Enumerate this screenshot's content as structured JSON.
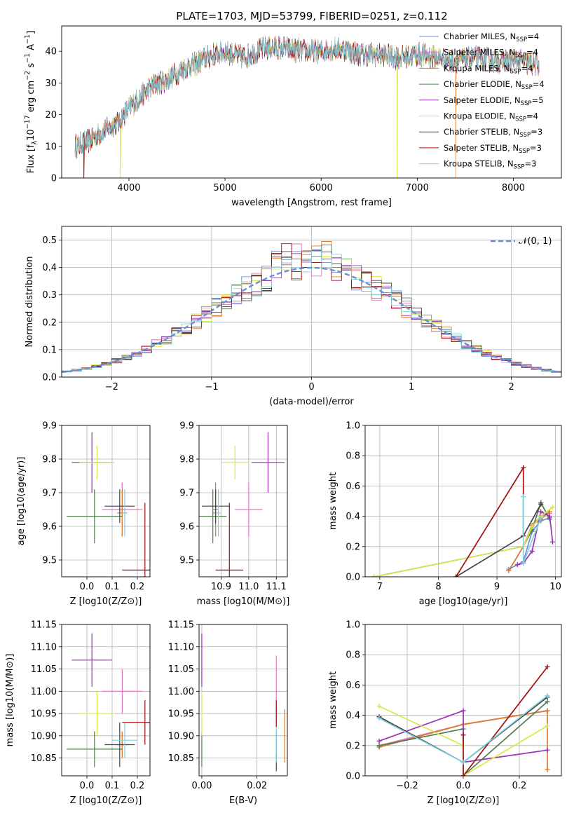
{
  "figure": {
    "title": "PLATE=1703, MJD=53799, FIBERID=0251, z=0.112",
    "models": [
      {
        "name": "Chabrier MILES",
        "nssp": 4,
        "color": "#6b8fd6"
      },
      {
        "name": "Salpeter MILES",
        "nssp": 4,
        "color": "#e377c2"
      },
      {
        "name": "Kroupa MILES",
        "nssp": 4,
        "color": "#e07b2a"
      },
      {
        "name": "Chabrier ELODIE",
        "nssp": 4,
        "color": "#4f7f4f"
      },
      {
        "name": "Salpeter ELODIE",
        "nssp": 5,
        "color": "#9b30b3"
      },
      {
        "name": "Kroupa ELODIE",
        "nssp": 4,
        "color": "#d6e84a"
      },
      {
        "name": "Chabrier STELIB",
        "nssp": 3,
        "color": "#444444"
      },
      {
        "name": "Salpeter STELIB",
        "nssp": 3,
        "color": "#a01010"
      },
      {
        "name": "Kroupa STELIB",
        "nssp": 3,
        "color": "#7fd3e0"
      }
    ],
    "legend_nssp_prefix": "N",
    "legend_nssp_sub": "SSP",
    "legend_location": "top-right"
  },
  "chart_data": [
    {
      "type": "line",
      "panel": "spectrum",
      "xlabel": "wavelength [Angstrom, rest frame]",
      "ylabel": "Flux [f",
      "ylabel_parts": {
        "main": "Flux [f",
        "sub1": "λ",
        "mid": "10",
        "sup1": "−17",
        "rest": " erg cm",
        "sup2": "−2",
        "rest2": " s",
        "sup3": "−1",
        "rest3": " A",
        "sup4": "−1",
        "end": "]"
      },
      "xlim": [
        3300,
        8500
      ],
      "ylim": [
        0,
        48
      ],
      "xticks": [
        "4000",
        "5000",
        "6000",
        "7000",
        "8000"
      ],
      "yticks": [
        "0",
        "10",
        "20",
        "30",
        "40"
      ],
      "grid": false,
      "continuum": {
        "x": [
          3450,
          3600,
          3750,
          3900,
          4000,
          4100,
          4200,
          4300,
          4400,
          4500,
          4600,
          4700,
          4800,
          5000,
          5200,
          5400,
          5600,
          5800,
          6000,
          6200,
          6400,
          6600,
          6800,
          7000,
          7200,
          7400,
          7600,
          7800,
          8000,
          8200
        ],
        "y": [
          10,
          12,
          15,
          18,
          22,
          25,
          28,
          30,
          31,
          33,
          35,
          36,
          38,
          40,
          38,
          41,
          41,
          40,
          40,
          41,
          39,
          39,
          38,
          39,
          38,
          37,
          38,
          37,
          37,
          36
        ]
      },
      "dropouts": [
        {
          "model": "Salpeter STELIB",
          "x": 3530
        },
        {
          "model": "Kroupa ELODIE",
          "x": 3910
        },
        {
          "model": "Kroupa ELODIE",
          "x": 6790
        },
        {
          "model": "Kroupa MILES",
          "x": 7400
        }
      ]
    },
    {
      "type": "line",
      "panel": "residual-histogram",
      "xlabel": "(data-model)/error",
      "ylabel": "Normed distribution",
      "xlim": [
        -2.5,
        2.5
      ],
      "ylim": [
        0,
        0.55
      ],
      "xticks": [
        "−2",
        "−1",
        "0",
        "1",
        "2"
      ],
      "yticks": [
        "0.0",
        "0.1",
        "0.2",
        "0.3",
        "0.4",
        "0.5"
      ],
      "grid": true,
      "gaussian_label": "𝒩(0, 1)",
      "gaussian": {
        "mean": 0,
        "sigma": 1,
        "color": "#6b8fd6"
      },
      "histogram_bin_width": 0.1
    },
    {
      "type": "scatter",
      "panel": "age-vs-metallicity",
      "xlabel": "Z [log10(Z/Z⊙)]",
      "ylabel": "age [log10(age/yr)]",
      "xlim": [
        -0.1,
        0.25
      ],
      "ylim": [
        9.45,
        9.9
      ],
      "xticks": [
        "0.0",
        "0.1",
        "0.2"
      ],
      "yticks": [
        "9.5",
        "9.6",
        "9.7",
        "9.8",
        "9.9"
      ],
      "grid": true,
      "points": [
        {
          "model": "Chabrier MILES",
          "x": 0.14,
          "y": 9.65,
          "xerr": 0.02,
          "yerr": 0.08
        },
        {
          "model": "Salpeter MILES",
          "x": 0.14,
          "y": 9.65,
          "xerr": 0.08,
          "yerr": 0.08
        },
        {
          "model": "Kroupa MILES",
          "x": 0.14,
          "y": 9.64,
          "xerr": 0.02,
          "yerr": 0.07
        },
        {
          "model": "Chabrier ELODIE",
          "x": 0.03,
          "y": 9.63,
          "xerr": 0.11,
          "yerr": 0.08
        },
        {
          "model": "Salpeter ELODIE",
          "x": 0.02,
          "y": 9.79,
          "xerr": 0.08,
          "yerr": 0.09
        },
        {
          "model": "Kroupa ELODIE",
          "x": 0.04,
          "y": 9.79,
          "xerr": 0.07,
          "yerr": 0.05
        },
        {
          "model": "Chabrier STELIB",
          "x": 0.13,
          "y": 9.66,
          "xerr": 0.06,
          "yerr": 0.05
        },
        {
          "model": "Salpeter STELIB",
          "x": 0.23,
          "y": 9.47,
          "xerr": 0.09,
          "yerr": 0.2
        },
        {
          "model": "Kroupa STELIB",
          "x": 0.15,
          "y": 9.64,
          "xerr": 0.01,
          "yerr": 0.07
        }
      ]
    },
    {
      "type": "scatter",
      "panel": "age-vs-mass",
      "xlabel": "mass [log10(M/M⊙)]",
      "ylabel": "",
      "xlim": [
        10.82,
        11.14
      ],
      "ylim": [
        9.45,
        9.9
      ],
      "xticks": [
        "10.9",
        "11.0",
        "11.1"
      ],
      "yticks": [
        "9.5",
        "9.6",
        "9.7",
        "9.8",
        "9.9"
      ],
      "grid": true,
      "points": [
        {
          "model": "Chabrier MILES",
          "x": 10.88,
          "y": 9.65,
          "xerr": 0.01,
          "yerr": 0.08
        },
        {
          "model": "Salpeter MILES",
          "x": 11.0,
          "y": 9.65,
          "xerr": 0.05,
          "yerr": 0.08
        },
        {
          "model": "Kroupa MILES",
          "x": 10.88,
          "y": 9.64,
          "xerr": 0.01,
          "yerr": 0.07
        },
        {
          "model": "Chabrier ELODIE",
          "x": 10.87,
          "y": 9.63,
          "xerr": 0.05,
          "yerr": 0.08
        },
        {
          "model": "Salpeter ELODIE",
          "x": 11.07,
          "y": 9.79,
          "xerr": 0.06,
          "yerr": 0.09
        },
        {
          "model": "Kroupa ELODIE",
          "x": 10.95,
          "y": 9.79,
          "xerr": 0.05,
          "yerr": 0.05
        },
        {
          "model": "Chabrier STELIB",
          "x": 10.88,
          "y": 9.66,
          "xerr": 0.05,
          "yerr": 0.05
        },
        {
          "model": "Salpeter STELIB",
          "x": 10.93,
          "y": 9.47,
          "xerr": 0.05,
          "yerr": 0.2
        },
        {
          "model": "Kroupa STELIB",
          "x": 10.89,
          "y": 9.64,
          "xerr": 0.01,
          "yerr": 0.07
        }
      ]
    },
    {
      "type": "line",
      "panel": "mass-weight-vs-age",
      "xlabel": "age [log10(age/yr)]",
      "ylabel": "mass weight",
      "xlim": [
        6.75,
        10.1
      ],
      "ylim": [
        0,
        1
      ],
      "xticks": [
        "7",
        "8",
        "9",
        "10"
      ],
      "yticks": [
        "0.0",
        "0.2",
        "0.4",
        "0.6",
        "0.8",
        "1.0"
      ],
      "grid": true,
      "series": [
        {
          "model": "Chabrier MILES",
          "x": [
            9.2,
            9.45,
            9.6,
            9.75,
            9.9
          ],
          "y": [
            0.05,
            0.1,
            0.3,
            0.37,
            0.39
          ]
        },
        {
          "model": "Salpeter MILES",
          "x": [
            9.2,
            9.45,
            9.6,
            9.75,
            9.9
          ],
          "y": [
            0.04,
            0.2,
            0.34,
            0.4,
            0.42
          ]
        },
        {
          "model": "Kroupa MILES",
          "x": [
            9.2,
            9.45,
            9.6,
            9.75,
            9.9
          ],
          "y": [
            0.04,
            0.2,
            0.34,
            0.38,
            0.43
          ]
        },
        {
          "model": "Chabrier ELODIE",
          "x": [
            6.9,
            9.45,
            9.6,
            9.75,
            9.9
          ],
          "y": [
            0.0,
            0.2,
            0.31,
            0.49,
            0.38
          ]
        },
        {
          "model": "Salpeter ELODIE",
          "x": [
            9.35,
            9.45,
            9.6,
            9.75,
            9.9,
            9.95
          ],
          "y": [
            0.08,
            0.09,
            0.17,
            0.43,
            0.4,
            0.23
          ]
        },
        {
          "model": "Kroupa ELODIE",
          "x": [
            6.9,
            9.45,
            9.6,
            9.75,
            9.95
          ],
          "y": [
            0.0,
            0.2,
            0.33,
            0.4,
            0.46
          ]
        },
        {
          "model": "Chabrier STELIB",
          "x": [
            8.3,
            9.45,
            9.75
          ],
          "y": [
            0.0,
            0.27,
            0.48
          ]
        },
        {
          "model": "Salpeter STELIB",
          "x": [
            8.3,
            9.45,
            9.45
          ],
          "y": [
            0.0,
            0.72,
            0.27
          ]
        },
        {
          "model": "Kroupa STELIB",
          "x": [
            9.45,
            9.45,
            9.75
          ],
          "y": [
            0.53,
            0.09,
            0.39
          ]
        }
      ]
    },
    {
      "type": "scatter",
      "panel": "mass-vs-metallicity",
      "xlabel": "Z [log10(Z/Z⊙)]",
      "ylabel": "mass [log10(M/M⊙)]",
      "xlim": [
        -0.1,
        0.25
      ],
      "ylim": [
        10.81,
        11.15
      ],
      "xticks": [
        "0.0",
        "0.1",
        "0.2"
      ],
      "yticks": [
        "10.85",
        "10.90",
        "10.95",
        "11.00",
        "11.05",
        "11.10",
        "11.15"
      ],
      "grid": true,
      "points": [
        {
          "model": "Chabrier MILES",
          "x": 0.14,
          "y": 10.88,
          "xerr": 0.02,
          "yerr": 0.03
        },
        {
          "model": "Salpeter MILES",
          "x": 0.14,
          "y": 11.0,
          "xerr": 0.08,
          "yerr": 0.05
        },
        {
          "model": "Kroupa MILES",
          "x": 0.14,
          "y": 10.88,
          "xerr": 0.02,
          "yerr": 0.03
        },
        {
          "model": "Chabrier ELODIE",
          "x": 0.03,
          "y": 10.87,
          "xerr": 0.11,
          "yerr": 0.04
        },
        {
          "model": "Salpeter ELODIE",
          "x": 0.02,
          "y": 11.07,
          "xerr": 0.08,
          "yerr": 0.06
        },
        {
          "model": "Kroupa ELODIE",
          "x": 0.04,
          "y": 10.95,
          "xerr": 0.07,
          "yerr": 0.05
        },
        {
          "model": "Chabrier STELIB",
          "x": 0.13,
          "y": 10.88,
          "xerr": 0.06,
          "yerr": 0.05
        },
        {
          "model": "Salpeter STELIB",
          "x": 0.23,
          "y": 10.93,
          "xerr": 0.09,
          "yerr": 0.05
        },
        {
          "model": "Kroupa STELIB",
          "x": 0.15,
          "y": 10.89,
          "xerr": 0.05,
          "yerr": 0.04
        }
      ]
    },
    {
      "type": "scatter",
      "panel": "mass-vs-extinction",
      "xlabel": "E(B-V)",
      "ylabel": "",
      "xlim": [
        -0.001,
        0.031
      ],
      "ylim": [
        10.81,
        11.15
      ],
      "xticks": [
        "0.00",
        "0.02"
      ],
      "yticks": [
        "10.85",
        "10.90",
        "10.95",
        "11.00",
        "11.05",
        "11.10",
        "11.15"
      ],
      "grid": true,
      "points": [
        {
          "model": "Chabrier MILES",
          "x": 0.027,
          "y": 10.88,
          "yerr": 0.03
        },
        {
          "model": "Salpeter MILES",
          "x": 0.027,
          "y": 11.0,
          "yerr": 0.08
        },
        {
          "model": "Kroupa MILES",
          "x": 0.03,
          "y": 10.9,
          "yerr": 0.06
        },
        {
          "model": "Chabrier ELODIE",
          "x": 0.0,
          "y": 10.87,
          "yerr": 0.04
        },
        {
          "model": "Salpeter ELODIE",
          "x": 0.0,
          "y": 11.07,
          "yerr": 0.06
        },
        {
          "model": "Kroupa ELODIE",
          "x": 0.0,
          "y": 10.95,
          "yerr": 0.05
        },
        {
          "model": "Chabrier STELIB",
          "x": 0.027,
          "y": 10.84,
          "yerr": 0.02
        },
        {
          "model": "Salpeter STELIB",
          "x": 0.027,
          "y": 10.95,
          "yerr": 0.03
        },
        {
          "model": "Kroupa STELIB",
          "x": 0.027,
          "y": 10.88,
          "yerr": 0.04
        }
      ]
    },
    {
      "type": "line",
      "panel": "mass-weight-vs-metallicity",
      "xlabel": "Z [log10(Z/Z⊙)]",
      "ylabel": "mass weight",
      "xlim": [
        -0.35,
        0.35
      ],
      "ylim": [
        0,
        1
      ],
      "xticks": [
        "−0.2",
        "0.0",
        "0.2"
      ],
      "yticks": [
        "0.0",
        "0.2",
        "0.4",
        "0.6",
        "0.8",
        "1.0"
      ],
      "grid": true,
      "series": [
        {
          "model": "Chabrier MILES",
          "x": [
            -0.3,
            0.0,
            0.3
          ],
          "y": [
            0.19,
            0.34,
            0.43
          ]
        },
        {
          "model": "Salpeter MILES",
          "x": [
            -0.3,
            0.0,
            0.3
          ],
          "y": [
            0.2,
            0.34,
            0.43
          ]
        },
        {
          "model": "Kroupa MILES",
          "x": [
            -0.3,
            0.0,
            0.3,
            0.3
          ],
          "y": [
            0.19,
            0.34,
            0.43,
            0.04
          ]
        },
        {
          "model": "Chabrier ELODIE",
          "x": [
            -0.3,
            0.0,
            0.0,
            0.3
          ],
          "y": [
            0.2,
            0.31,
            0.0,
            0.49
          ]
        },
        {
          "model": "Salpeter ELODIE",
          "x": [
            -0.3,
            0.0,
            0.0,
            0.3
          ],
          "y": [
            0.23,
            0.43,
            0.09,
            0.17
          ]
        },
        {
          "model": "Kroupa ELODIE",
          "x": [
            -0.3,
            0.0,
            0.0,
            0.3
          ],
          "y": [
            0.46,
            0.2,
            0.0,
            0.33
          ]
        },
        {
          "model": "Chabrier STELIB",
          "x": [
            -0.3,
            0.0,
            0.3
          ],
          "y": [
            0.39,
            0.09,
            0.52
          ]
        },
        {
          "model": "Salpeter STELIB",
          "x": [
            0.0,
            0.0,
            0.3
          ],
          "y": [
            0.27,
            0.0,
            0.72
          ]
        },
        {
          "model": "Kroupa STELIB",
          "x": [
            -0.3,
            0.0,
            0.3
          ],
          "y": [
            0.38,
            0.09,
            0.53
          ]
        }
      ]
    }
  ]
}
